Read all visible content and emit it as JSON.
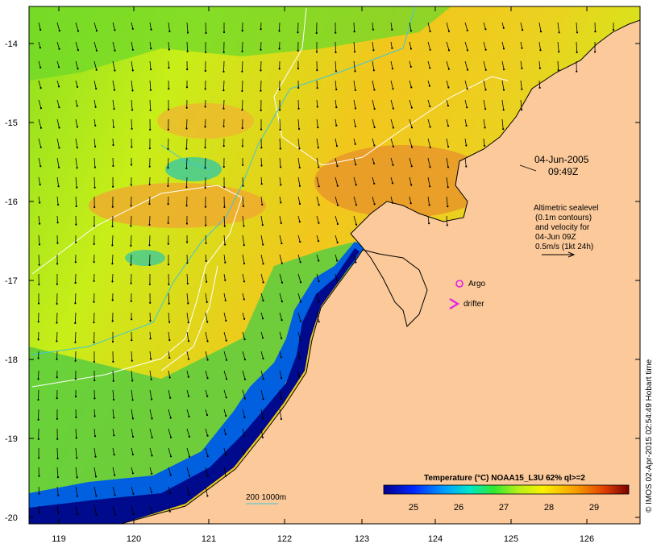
{
  "map": {
    "lon_ticks": [
      "119",
      "120",
      "121",
      "122",
      "123",
      "124",
      "125",
      "126"
    ],
    "lat_ticks": [
      "-14",
      "-15",
      "-16",
      "-17",
      "-18",
      "-19",
      "-20"
    ],
    "timestamp_date": "04-Jun-2005",
    "timestamp_time": "09:49Z",
    "legend_lines": [
      "Altimetric sealevel",
      "(0.1m contours)",
      "and velocity for",
      "04-Jun 09Z",
      "0.5m/s (1kt 24h)"
    ],
    "argo_label": "Argo",
    "drifter_label": "drifter",
    "depth_label": "200  1000m",
    "colorbar": {
      "title": "Temperature (°C) NOAA15_L3U 62% ql>=2",
      "ticks": [
        "25",
        "26",
        "27",
        "28",
        "29"
      ]
    },
    "credit": "© IMOS 02-Apr-2015 02:54:49 Hobart time"
  },
  "colors": {
    "land": "#fbc99a",
    "cold": "#000a8c",
    "warm": "#e8962a",
    "contour_white": "#ffffff",
    "isobath_cyan": "#3fc6d8",
    "marker_magenta": "#e61ee6"
  }
}
